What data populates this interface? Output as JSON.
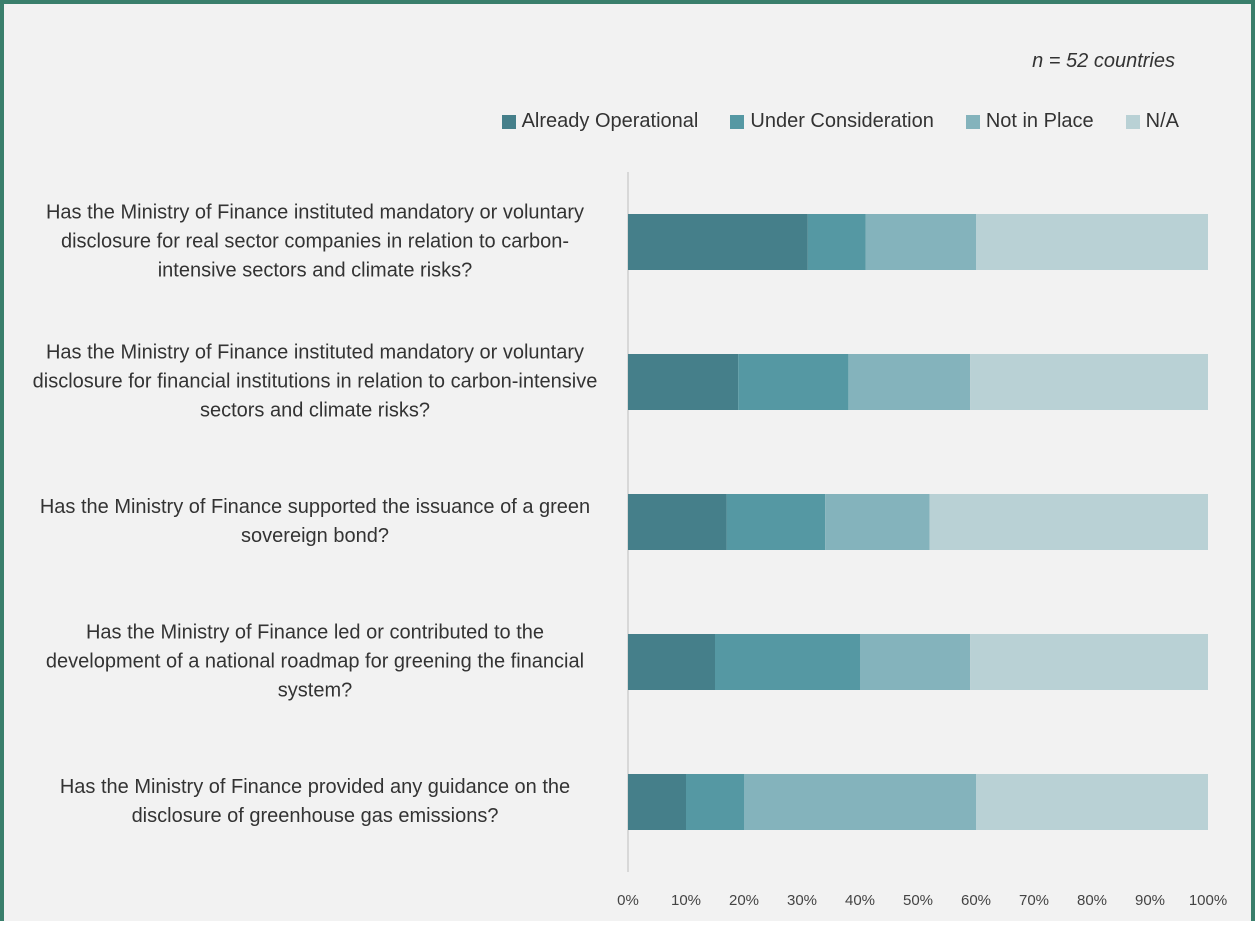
{
  "chart_data": {
    "type": "stacked-bar-horizontal",
    "annotation": "n = 52 countries",
    "categories": [
      "Has the Ministry of Finance instituted mandatory or voluntary disclosure for real sector companies in relation to carbon-intensive sectors and climate risks?",
      "Has the Ministry of Finance instituted mandatory or voluntary disclosure for financial institutions in relation to carbon-intensive sectors and climate risks?",
      "Has the Ministry of Finance supported the issuance of a green sovereign bond?",
      "Has the Ministry of Finance led or contributed to the development of a national roadmap for greening the financial system?",
      "Has the Ministry of Finance provided any guidance on the disclosure of greenhouse gas emissions?"
    ],
    "series": [
      {
        "name": "Already Operational",
        "color": "#457f8a",
        "values": [
          31,
          19,
          17,
          15,
          10
        ]
      },
      {
        "name": "Under Consideration",
        "color": "#5598a3",
        "values": [
          10,
          19,
          17,
          25,
          10
        ]
      },
      {
        "name": "Not in Place",
        "color": "#84b3bc",
        "values": [
          19,
          21,
          18,
          19,
          40
        ]
      },
      {
        "name": "N/A",
        "color": "#b9d1d5",
        "values": [
          40,
          41,
          48,
          41,
          40
        ]
      }
    ],
    "xlim": [
      0,
      100
    ],
    "xticks": [
      {
        "value": 0,
        "label": "0%"
      },
      {
        "value": 10,
        "label": "10%"
      },
      {
        "value": 20,
        "label": "20%"
      },
      {
        "value": 30,
        "label": "30%"
      },
      {
        "value": 40,
        "label": "40%"
      },
      {
        "value": 50,
        "label": "50%"
      },
      {
        "value": 60,
        "label": "60%"
      },
      {
        "value": 70,
        "label": "70%"
      },
      {
        "value": 80,
        "label": "80%"
      },
      {
        "value": 90,
        "label": "90%"
      },
      {
        "value": 100,
        "label": "100%"
      }
    ],
    "legend": "top-right"
  }
}
